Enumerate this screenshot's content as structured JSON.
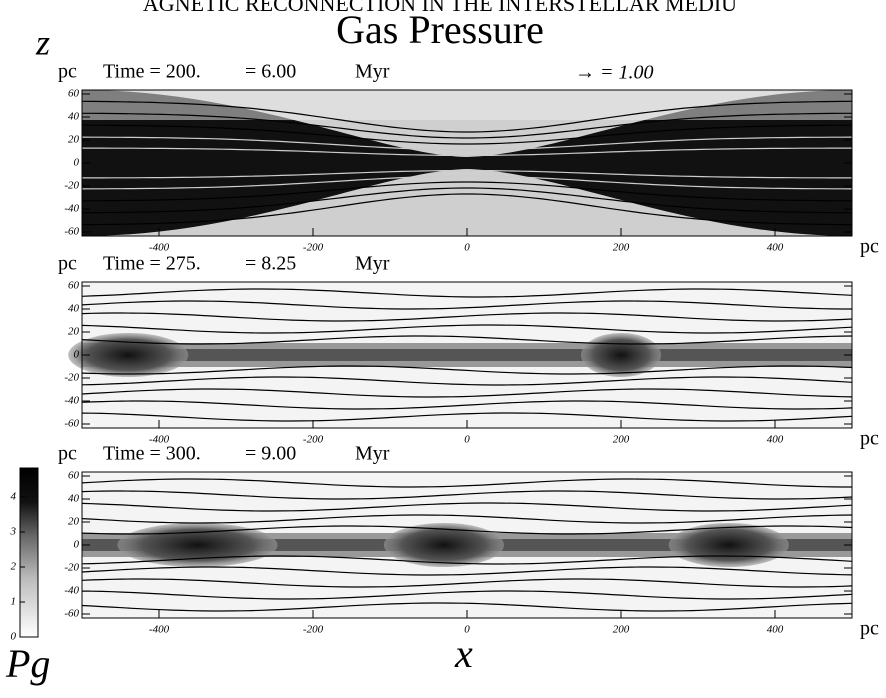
{
  "header": "AGNETIC RECONNECTION IN THE INTERSTELLAR MEDIU",
  "title": "Gas Pressure",
  "z_axis_label": "z",
  "x_axis_label": "x",
  "vector_key": "→ = 1.00",
  "colorbar": {
    "label": "Pg",
    "ticks": [
      0,
      1,
      2,
      3,
      4
    ]
  },
  "panels": [
    {
      "y_unit": "pc",
      "time": "Time = 200.",
      "elapsed": "= 6.00",
      "time_unit": "Myr",
      "yticks": [
        60,
        40,
        20,
        0,
        -20,
        -40,
        -60
      ],
      "xticks": [
        -400,
        -200,
        0,
        200,
        400
      ],
      "x_unit": "pc"
    },
    {
      "y_unit": "pc",
      "time": "Time = 275.",
      "elapsed": "= 8.25",
      "time_unit": "Myr",
      "yticks": [
        60,
        40,
        20,
        0,
        -20,
        -40,
        -60
      ],
      "xticks": [
        -400,
        -200,
        0,
        200,
        400
      ],
      "x_unit": "pc"
    },
    {
      "y_unit": "pc",
      "time": "Time = 300.",
      "elapsed": "= 9.00",
      "time_unit": "Myr",
      "yticks": [
        60,
        40,
        20,
        0,
        -20,
        -40,
        -60
      ],
      "xticks": [
        -400,
        -200,
        0,
        200,
        400
      ],
      "x_unit": "pc"
    }
  ]
}
